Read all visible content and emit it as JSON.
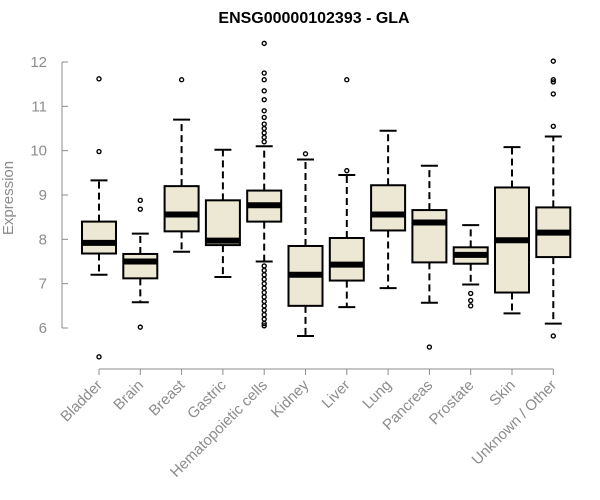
{
  "chart_data": {
    "type": "boxplot",
    "title": "ENSG00000102393 - GLA",
    "xlabel": "",
    "ylabel": "Expression",
    "ylim": [
      5.2,
      12.7
    ],
    "yticks": [
      6,
      7,
      8,
      9,
      10,
      11,
      12
    ],
    "categories": [
      "Bladder",
      "Brain",
      "Breast",
      "Gastric",
      "Hematopoietic cells",
      "Kidney",
      "Liver",
      "Lung",
      "Pancreas",
      "Prostate",
      "Skin",
      "Unknown / Other"
    ],
    "box_fill": "#ede8d3",
    "box_stroke": "#000000",
    "median_color": "#000000",
    "axis_color": "#8c8c8c",
    "series": [
      {
        "name": "Bladder",
        "whisker_low": 7.2,
        "q1": 7.68,
        "median": 7.92,
        "q3": 8.4,
        "whisker_high": 9.33,
        "outliers": [
          11.62,
          9.98,
          5.35
        ]
      },
      {
        "name": "Brain",
        "whisker_low": 6.58,
        "q1": 7.12,
        "median": 7.5,
        "q3": 7.67,
        "whisker_high": 8.13,
        "outliers": [
          8.88,
          8.68,
          6.02
        ]
      },
      {
        "name": "Breast",
        "whisker_low": 7.72,
        "q1": 8.18,
        "median": 8.56,
        "q3": 9.2,
        "whisker_high": 10.7,
        "outliers": [
          11.6
        ]
      },
      {
        "name": "Gastric",
        "whisker_low": 7.15,
        "q1": 7.87,
        "median": 7.97,
        "q3": 8.88,
        "whisker_high": 10.02,
        "outliers": []
      },
      {
        "name": "Hematopoietic cells",
        "whisker_low": 7.5,
        "q1": 8.4,
        "median": 8.77,
        "q3": 9.1,
        "whisker_high": 10.1,
        "outliers": [
          12.42,
          11.75,
          11.6,
          11.35,
          11.15,
          10.9,
          10.75,
          10.6,
          10.5,
          10.4,
          10.3,
          10.2,
          7.4,
          7.3,
          7.2,
          7.1,
          7.0,
          6.9,
          6.8,
          6.7,
          6.6,
          6.5,
          6.4,
          6.3,
          6.2,
          6.1,
          6.05
        ]
      },
      {
        "name": "Kidney",
        "whisker_low": 5.82,
        "q1": 6.5,
        "median": 7.2,
        "q3": 7.85,
        "whisker_high": 9.8,
        "outliers": [
          9.93
        ]
      },
      {
        "name": "Liver",
        "whisker_low": 6.47,
        "q1": 7.07,
        "median": 7.43,
        "q3": 8.03,
        "whisker_high": 9.45,
        "outliers": [
          11.6,
          9.55
        ]
      },
      {
        "name": "Lung",
        "whisker_low": 6.9,
        "q1": 8.2,
        "median": 8.56,
        "q3": 9.22,
        "whisker_high": 10.45,
        "outliers": []
      },
      {
        "name": "Pancreas",
        "whisker_low": 6.57,
        "q1": 7.48,
        "median": 8.38,
        "q3": 8.66,
        "whisker_high": 9.66,
        "outliers": [
          5.57
        ]
      },
      {
        "name": "Prostate",
        "whisker_low": 6.98,
        "q1": 7.45,
        "median": 7.65,
        "q3": 7.82,
        "whisker_high": 8.32,
        "outliers": [
          6.78,
          6.62,
          6.5
        ]
      },
      {
        "name": "Skin",
        "whisker_low": 6.33,
        "q1": 6.8,
        "median": 7.98,
        "q3": 9.17,
        "whisker_high": 10.08,
        "outliers": []
      },
      {
        "name": "Unknown / Other",
        "whisker_low": 6.1,
        "q1": 7.6,
        "median": 8.15,
        "q3": 8.72,
        "whisker_high": 10.32,
        "outliers": [
          12.02,
          11.6,
          11.55,
          11.28,
          10.55,
          5.82
        ]
      }
    ]
  }
}
